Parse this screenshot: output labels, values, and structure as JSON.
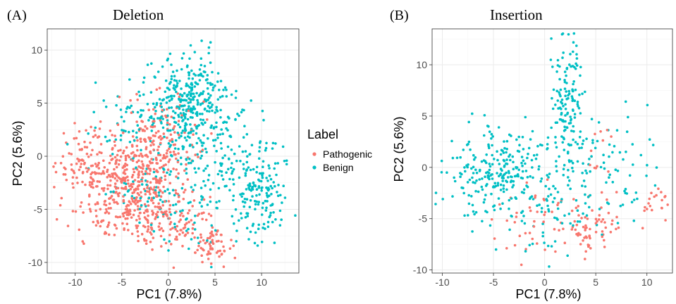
{
  "colors": {
    "pathogenic": "#F8766D",
    "benign": "#00BFC4",
    "grid_major": "#ebebeb",
    "grid_minor": "#f5f5f5",
    "panel_border": "#333333"
  },
  "legend": {
    "title": "Label",
    "items": [
      {
        "label": "Pathogenic",
        "color": "#F8766D"
      },
      {
        "label": "Benign",
        "color": "#00BFC4"
      }
    ],
    "placement": "between panels"
  },
  "chart_data": [
    {
      "type": "scatter",
      "panel_label": "(A)",
      "title": "Deletion",
      "xlabel": "PC1 (7.8%)",
      "ylabel": "PC2 (5.6%)",
      "xlim": [
        -13,
        14
      ],
      "ylim": [
        -11,
        12
      ],
      "xticks": [
        -10,
        -5,
        0,
        5,
        10
      ],
      "yticks": [
        -10,
        -5,
        0,
        5,
        10
      ],
      "grid": true,
      "series": [
        {
          "name": "Pathogenic",
          "color": "#F8766D",
          "clusters": [
            {
              "cx": -4,
              "cy": -2.5,
              "sx": 2.6,
              "sy": 2.0,
              "n": 330
            },
            {
              "cx": -9,
              "cy": -0.5,
              "sx": 1.4,
              "sy": 1.8,
              "n": 90
            },
            {
              "cx": -1,
              "cy": 1.5,
              "sx": 2.2,
              "sy": 2.2,
              "n": 150
            },
            {
              "cx": 0.5,
              "cy": -6,
              "sx": 2.4,
              "sy": 1.5,
              "n": 110
            },
            {
              "cx": 5,
              "cy": -8.5,
              "sx": 1.1,
              "sy": 1.1,
              "n": 60
            },
            {
              "cx": -4,
              "cy": -5.5,
              "sx": 2.5,
              "sy": 1.0,
              "n": 70
            }
          ]
        },
        {
          "name": "Benign",
          "color": "#00BFC4",
          "clusters": [
            {
              "cx": 2.5,
              "cy": 5,
              "sx": 1.9,
              "sy": 2.2,
              "n": 300
            },
            {
              "cx": 9.5,
              "cy": -3,
              "sx": 1.8,
              "sy": 2.5,
              "n": 170
            },
            {
              "cx": 5,
              "cy": 1,
              "sx": 3.0,
              "sy": 2.8,
              "n": 120
            },
            {
              "cx": -3,
              "cy": 3.5,
              "sx": 2.5,
              "sy": 2.0,
              "n": 70
            },
            {
              "cx": -2,
              "cy": -3,
              "sx": 2.5,
              "sy": 2.0,
              "n": 70
            },
            {
              "cx": 3,
              "cy": -6,
              "sx": 2.5,
              "sy": 2.0,
              "n": 45
            }
          ]
        }
      ]
    },
    {
      "type": "scatter",
      "panel_label": "(B)",
      "title": "Insertion",
      "xlabel": "PC1 (7.8%)",
      "ylabel": "PC2 (5.6%)",
      "xlim": [
        -11,
        12.5
      ],
      "ylim": [
        -10.3,
        13.5
      ],
      "xticks": [
        -10,
        -5,
        0,
        5,
        10
      ],
      "yticks": [
        -10,
        -5,
        0,
        5,
        10
      ],
      "grid": true,
      "series": [
        {
          "name": "Pathogenic",
          "color": "#F8766D",
          "clusters": [
            {
              "cx": 4,
              "cy": -5.5,
              "sx": 1.7,
              "sy": 1.3,
              "n": 65
            },
            {
              "cx": 11,
              "cy": -3.5,
              "sx": 0.8,
              "sy": 0.8,
              "n": 22
            },
            {
              "cx": -1,
              "cy": -5,
              "sx": 2.8,
              "sy": 2.2,
              "n": 45
            },
            {
              "cx": 5.5,
              "cy": 1.5,
              "sx": 0.8,
              "sy": 1.5,
              "n": 12
            }
          ]
        },
        {
          "name": "Benign",
          "color": "#00BFC4",
          "clusters": [
            {
              "cx": -5,
              "cy": -0.5,
              "sx": 2.7,
              "sy": 2.0,
              "n": 240
            },
            {
              "cx": 2.3,
              "cy": 6.5,
              "sx": 0.8,
              "sy": 3.2,
              "n": 130
            },
            {
              "cx": 4,
              "cy": 0,
              "sx": 2.6,
              "sy": 2.8,
              "n": 90
            },
            {
              "cx": 0,
              "cy": -4.5,
              "sx": 2.7,
              "sy": 2.5,
              "n": 60
            },
            {
              "cx": 8,
              "cy": -1,
              "sx": 2.5,
              "sy": 2.5,
              "n": 20
            }
          ]
        }
      ]
    }
  ]
}
